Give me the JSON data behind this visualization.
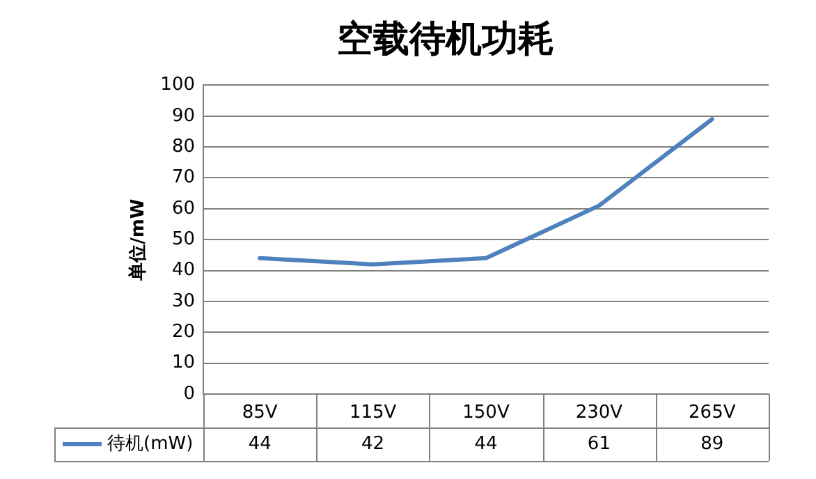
{
  "chart_data": {
    "type": "line",
    "title": "空载待机功耗",
    "ylabel": "单位/mW",
    "categories": [
      "85V",
      "115V",
      "150V",
      "230V",
      "265V"
    ],
    "series": [
      {
        "name": "待机(mW)",
        "color": "#4f81bd",
        "values": [
          44,
          42,
          44,
          61,
          89
        ]
      }
    ],
    "ylim": [
      0,
      100
    ],
    "yticks": [
      0,
      10,
      20,
      30,
      40,
      50,
      60,
      70,
      80,
      90,
      100
    ],
    "grid": "y",
    "legend": "bottom left",
    "marker": "none",
    "line_style": "solid",
    "data_labels": true
  }
}
